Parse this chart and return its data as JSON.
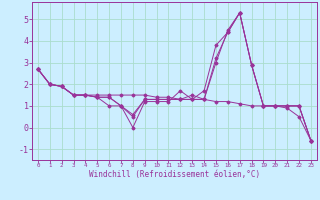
{
  "bg_color": "#cceeff",
  "grid_color": "#aaddcc",
  "line_color": "#993399",
  "xlabel": "Windchill (Refroidissement éolien,°C)",
  "ylim": [
    -1.5,
    5.8
  ],
  "xlim": [
    -0.5,
    23.5
  ],
  "yticks": [
    -1,
    0,
    1,
    2,
    3,
    4,
    5
  ],
  "xticks": [
    0,
    1,
    2,
    3,
    4,
    5,
    6,
    7,
    8,
    9,
    10,
    11,
    12,
    13,
    14,
    15,
    16,
    17,
    18,
    19,
    20,
    21,
    22,
    23
  ],
  "series": [
    [
      2.7,
      2.0,
      1.9,
      1.5,
      1.5,
      1.4,
      1.4,
      1.0,
      0.6,
      1.3,
      1.3,
      1.3,
      1.3,
      1.5,
      1.3,
      3.0,
      4.5,
      5.3,
      2.9,
      1.0,
      1.0,
      1.0,
      1.0,
      -0.6
    ],
    [
      2.7,
      2.0,
      1.9,
      1.5,
      1.5,
      1.4,
      1.0,
      1.0,
      0.0,
      1.2,
      1.2,
      1.2,
      1.7,
      1.3,
      1.7,
      3.8,
      4.4,
      5.3,
      2.9,
      1.0,
      1.0,
      1.0,
      1.0,
      -0.6
    ],
    [
      2.7,
      2.0,
      1.9,
      1.5,
      1.5,
      1.4,
      1.4,
      1.0,
      0.5,
      1.3,
      1.3,
      1.3,
      1.3,
      1.3,
      1.3,
      3.2,
      4.4,
      5.3,
      2.9,
      1.0,
      1.0,
      1.0,
      1.0,
      -0.6
    ],
    [
      2.7,
      2.0,
      1.9,
      1.5,
      1.5,
      1.5,
      1.5,
      1.5,
      1.5,
      1.5,
      1.4,
      1.4,
      1.3,
      1.3,
      1.3,
      1.2,
      1.2,
      1.1,
      1.0,
      1.0,
      1.0,
      0.9,
      0.5,
      -0.6
    ]
  ],
  "ytick_fontsize": 6,
  "xtick_fontsize": 4.2,
  "xlabel_fontsize": 5.5
}
